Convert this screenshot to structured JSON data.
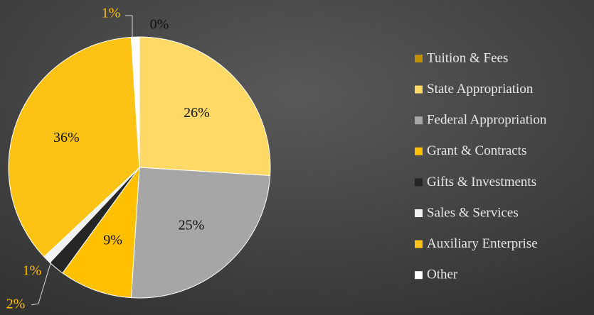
{
  "chart_data": {
    "type": "pie",
    "categories": [
      "Tuition & Fees",
      "State Appropriation",
      "Federal Appropriation",
      "Grant & Contracts",
      "Gifts & Investments",
      "Sales & Services",
      "Auxiliary Enterprise",
      "Other"
    ],
    "values": [
      0,
      26,
      25,
      9,
      2,
      1,
      36,
      1
    ],
    "value_labels": [
      "0%",
      "26%",
      "25%",
      "9%",
      "2%",
      "1%",
      "36%",
      "1%"
    ],
    "colors": [
      "#bf9000",
      "#ffd966",
      "#a6a6a6",
      "#ffc000",
      "#262626",
      "#f2f2f2",
      "#fcc314",
      "#ffffff"
    ],
    "legend": "right"
  }
}
